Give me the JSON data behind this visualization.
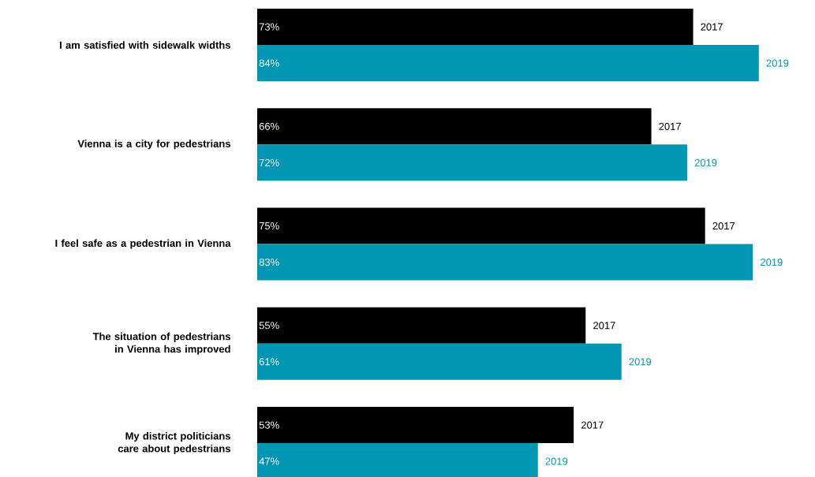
{
  "chart_data": {
    "type": "bar",
    "orientation": "horizontal",
    "categories": [
      "I am satisfied with sidewalk widths",
      "Vienna is a city for pedestrians",
      "I feel safe as a pedestrian in Vienna",
      "The situation of pedestrians in Vienna has improved",
      "My district politicians care about pedestrians"
    ],
    "series": [
      {
        "name": "2017",
        "color": "#000000",
        "values": [
          73,
          66,
          75,
          55,
          53
        ],
        "value_labels": [
          "73%",
          "66%",
          "75%",
          "55%",
          "53%"
        ]
      },
      {
        "name": "2019",
        "color": "#0096b4",
        "values": [
          84,
          72,
          83,
          61,
          47
        ],
        "value_labels": [
          "84%",
          "72%",
          "83%",
          "61%",
          "47%"
        ]
      }
    ]
  }
}
